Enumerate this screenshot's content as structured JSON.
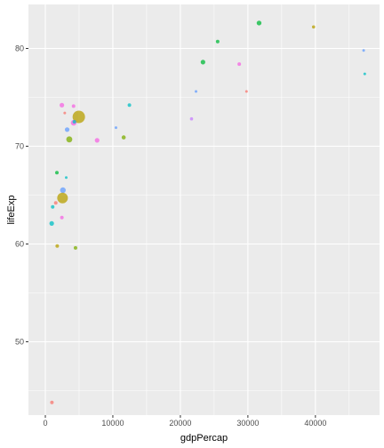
{
  "chart_data": {
    "type": "scatter",
    "title": "",
    "xlabel": "gdpPercap",
    "ylabel": "lifeExp",
    "xlim": [
      -2500,
      49500
    ],
    "ylim": [
      42.5,
      84.5
    ],
    "x_ticks": [
      0,
      10000,
      20000,
      30000,
      40000
    ],
    "x_tick_labels": [
      "0",
      "10000",
      "20000",
      "30000",
      "40000"
    ],
    "y_ticks": [
      50,
      60,
      70,
      80
    ],
    "y_tick_labels": [
      "50",
      "60",
      "70",
      "80"
    ],
    "grid": true,
    "legend": "none",
    "panel_background": "#ebebeb",
    "grid_color": "#ffffff",
    "point_opacity": 0.75,
    "points": [
      {
        "x": 31656,
        "y": 82.6,
        "size": 2.7,
        "color": "#00ba38"
      },
      {
        "x": 39725,
        "y": 82.2,
        "size": 1.8,
        "color": "#b79f00"
      },
      {
        "x": 47143,
        "y": 79.8,
        "size": 1.5,
        "color": "#619cff"
      },
      {
        "x": 47307,
        "y": 77.4,
        "size": 1.5,
        "color": "#00bfc4"
      },
      {
        "x": 25523,
        "y": 80.7,
        "size": 2.0,
        "color": "#00ba38"
      },
      {
        "x": 23348,
        "y": 78.6,
        "size": 2.6,
        "color": "#00ba38"
      },
      {
        "x": 28718,
        "y": 78.4,
        "size": 2.0,
        "color": "#f564e3"
      },
      {
        "x": 22316,
        "y": 75.6,
        "size": 1.5,
        "color": "#619cff"
      },
      {
        "x": 29796,
        "y": 75.6,
        "size": 1.5,
        "color": "#f8766d"
      },
      {
        "x": 21655,
        "y": 72.8,
        "size": 1.8,
        "color": "#c77cff"
      },
      {
        "x": 12452,
        "y": 74.2,
        "size": 2.0,
        "color": "#00bfc4"
      },
      {
        "x": 10461,
        "y": 71.9,
        "size": 1.5,
        "color": "#619cff"
      },
      {
        "x": 11606,
        "y": 70.9,
        "size": 2.3,
        "color": "#7cae00"
      },
      {
        "x": 4959,
        "y": 73.0,
        "size": 7.0,
        "color": "#b79f00"
      },
      {
        "x": 4200,
        "y": 72.4,
        "size": 3.2,
        "color": "#f564e3"
      },
      {
        "x": 2452,
        "y": 74.2,
        "size": 2.6,
        "color": "#f564e3"
      },
      {
        "x": 4181,
        "y": 74.1,
        "size": 2.0,
        "color": "#f564e3"
      },
      {
        "x": 2877,
        "y": 73.4,
        "size": 1.5,
        "color": "#f8766d"
      },
      {
        "x": 4300,
        "y": 72.5,
        "size": 2.0,
        "color": "#00bfc4"
      },
      {
        "x": 3232,
        "y": 71.7,
        "size": 2.6,
        "color": "#619cff"
      },
      {
        "x": 3548,
        "y": 70.7,
        "size": 3.4,
        "color": "#7cae00"
      },
      {
        "x": 7671,
        "y": 70.6,
        "size": 2.6,
        "color": "#f564e3"
      },
      {
        "x": 1713,
        "y": 67.3,
        "size": 2.0,
        "color": "#00ba38"
      },
      {
        "x": 3095,
        "y": 66.8,
        "size": 1.5,
        "color": "#00bfc4"
      },
      {
        "x": 2605,
        "y": 65.5,
        "size": 3.2,
        "color": "#619cff"
      },
      {
        "x": 2549,
        "y": 64.7,
        "size": 6.0,
        "color": "#b79f00"
      },
      {
        "x": 1545,
        "y": 64.2,
        "size": 2.0,
        "color": "#f8766d"
      },
      {
        "x": 1091,
        "y": 63.8,
        "size": 2.0,
        "color": "#00bfc4"
      },
      {
        "x": 2452,
        "y": 62.7,
        "size": 2.0,
        "color": "#f564e3"
      },
      {
        "x": 944,
        "y": 62.1,
        "size": 2.6,
        "color": "#00bfc4"
      },
      {
        "x": 1762,
        "y": 59.8,
        "size": 2.0,
        "color": "#b79f00"
      },
      {
        "x": 4471,
        "y": 59.6,
        "size": 2.0,
        "color": "#7cae00"
      },
      {
        "x": 975,
        "y": 43.8,
        "size": 2.0,
        "color": "#f8766d"
      }
    ]
  }
}
